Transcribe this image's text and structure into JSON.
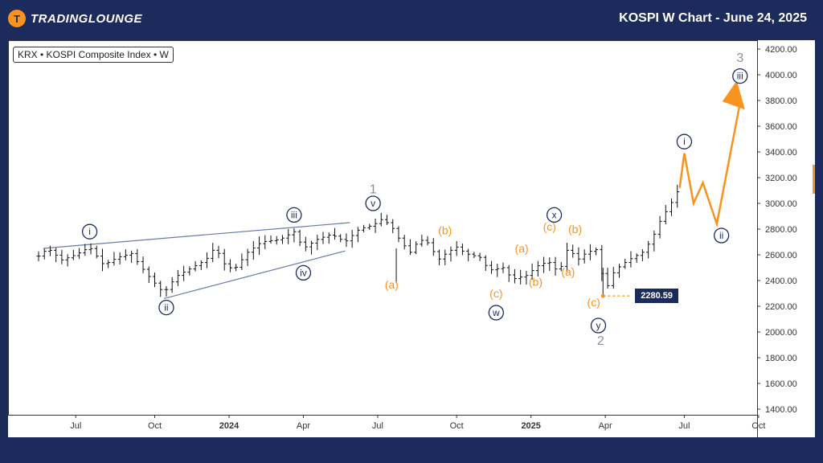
{
  "header": {
    "logo_text": "TRADINGLOUNGE",
    "logo_badge": "T",
    "title": "KOSPI W Chart - June 24, 2025"
  },
  "ticker_label": "KRX • KOSPI Composite Index • W",
  "price_marker": {
    "value": "2280.59"
  },
  "colors": {
    "background": "#1b2b5c",
    "orange": "#f7931e",
    "navy": "#1b2b5c",
    "grey": "#8a8f99",
    "trend": "#6a7ba8"
  },
  "chart_data": {
    "type": "ohlc-weekly",
    "title": "KOSPI W Chart - June 24, 2025",
    "ylim": [
      1400,
      4200
    ],
    "y_ticks": [
      "4200.00",
      "4000.00",
      "3800.00",
      "3600.00",
      "3400.00",
      "3200.00",
      "3000.00",
      "2800.00",
      "2600.00",
      "2400.00",
      "2200.00",
      "2000.00",
      "1800.00",
      "1600.00",
      "1400.00"
    ],
    "x_ticks": [
      {
        "label": "Jul",
        "bold": false,
        "t": 0.08
      },
      {
        "label": "Oct",
        "bold": false,
        "t": 0.25
      },
      {
        "label": "2024",
        "bold": true,
        "t": 0.41
      },
      {
        "label": "Apr",
        "bold": false,
        "t": 0.57
      },
      {
        "label": "Jul",
        "bold": false,
        "t": 0.73
      },
      {
        "label": "Oct",
        "bold": false,
        "t": 0.9
      },
      {
        "label": "2025",
        "bold": true,
        "t": 1.06
      },
      {
        "label": "Apr",
        "bold": false,
        "t": 1.22
      },
      {
        "label": "Jul",
        "bold": false,
        "t": 1.39
      },
      {
        "label": "Oct",
        "bold": false,
        "t": 1.55
      }
    ],
    "price_path": [
      [
        0.0,
        2590
      ],
      [
        0.02,
        2650
      ],
      [
        0.05,
        2560
      ],
      [
        0.08,
        2600
      ],
      [
        0.11,
        2660
      ],
      [
        0.14,
        2520
      ],
      [
        0.17,
        2580
      ],
      [
        0.2,
        2610
      ],
      [
        0.22,
        2510
      ],
      [
        0.24,
        2420
      ],
      [
        0.27,
        2300
      ],
      [
        0.28,
        2360
      ],
      [
        0.3,
        2440
      ],
      [
        0.33,
        2500
      ],
      [
        0.36,
        2560
      ],
      [
        0.38,
        2660
      ],
      [
        0.4,
        2530
      ],
      [
        0.42,
        2480
      ],
      [
        0.45,
        2620
      ],
      [
        0.48,
        2700
      ],
      [
        0.52,
        2720
      ],
      [
        0.55,
        2780
      ],
      [
        0.57,
        2650
      ],
      [
        0.6,
        2720
      ],
      [
        0.63,
        2760
      ],
      [
        0.66,
        2700
      ],
      [
        0.69,
        2800
      ],
      [
        0.72,
        2830
      ],
      [
        0.74,
        2880
      ],
      [
        0.76,
        2820
      ],
      [
        0.78,
        2700
      ],
      [
        0.8,
        2620
      ],
      [
        0.82,
        2720
      ],
      [
        0.84,
        2690
      ],
      [
        0.86,
        2560
      ],
      [
        0.88,
        2620
      ],
      [
        0.9,
        2660
      ],
      [
        0.92,
        2610
      ],
      [
        0.95,
        2580
      ],
      [
        0.97,
        2480
      ],
      [
        1.0,
        2500
      ],
      [
        1.02,
        2410
      ],
      [
        1.05,
        2440
      ],
      [
        1.08,
        2530
      ],
      [
        1.1,
        2540
      ],
      [
        1.12,
        2460
      ],
      [
        1.14,
        2660
      ],
      [
        1.16,
        2560
      ],
      [
        1.18,
        2620
      ],
      [
        1.2,
        2640
      ],
      [
        1.21,
        2500
      ],
      [
        1.22,
        2320
      ],
      [
        1.24,
        2480
      ],
      [
        1.27,
        2560
      ],
      [
        1.3,
        2620
      ],
      [
        1.32,
        2720
      ],
      [
        1.34,
        2880
      ],
      [
        1.36,
        2990
      ],
      [
        1.375,
        3090
      ]
    ],
    "projection": [
      [
        1.38,
        3120
      ],
      [
        1.39,
        3390
      ],
      [
        1.41,
        3000
      ],
      [
        1.43,
        3160
      ],
      [
        1.46,
        2840
      ],
      [
        1.51,
        3780
      ]
    ],
    "trend_lines": [
      {
        "from": [
          0.01,
          2650
        ],
        "to": [
          0.67,
          2850
        ]
      },
      {
        "from": [
          0.27,
          2260
        ],
        "to": [
          0.66,
          2630
        ]
      }
    ],
    "wave_labels": [
      {
        "text": "i",
        "style": "circle",
        "color": "navy",
        "t": 0.11,
        "p": 2780
      },
      {
        "text": "ii",
        "style": "circle",
        "color": "navy",
        "t": 0.275,
        "p": 2190
      },
      {
        "text": "iii",
        "style": "circle",
        "color": "navy",
        "t": 0.55,
        "p": 2910
      },
      {
        "text": "iv",
        "style": "circle",
        "color": "navy",
        "t": 0.57,
        "p": 2460
      },
      {
        "text": "v",
        "style": "circle",
        "color": "navy",
        "t": 0.72,
        "p": 3000
      },
      {
        "text": "1",
        "style": "plain",
        "color": "grey",
        "t": 0.72,
        "p": 3110
      },
      {
        "text": "(a)",
        "style": "plain",
        "color": "orange",
        "t": 0.76,
        "p": 2370
      },
      {
        "text": "(b)",
        "style": "plain",
        "color": "orange",
        "t": 0.875,
        "p": 2790
      },
      {
        "text": "(c)",
        "style": "plain",
        "color": "orange",
        "t": 0.985,
        "p": 2300
      },
      {
        "text": "w",
        "style": "circle",
        "color": "navy",
        "t": 0.985,
        "p": 2150
      },
      {
        "text": "(a)",
        "style": "plain",
        "color": "orange",
        "t": 1.04,
        "p": 2650
      },
      {
        "text": "(b)",
        "style": "plain",
        "color": "orange",
        "t": 1.07,
        "p": 2390
      },
      {
        "text": "(c)",
        "style": "plain",
        "color": "orange",
        "t": 1.1,
        "p": 2820
      },
      {
        "text": "x",
        "style": "circle",
        "color": "navy",
        "t": 1.11,
        "p": 2910
      },
      {
        "text": "(b)",
        "style": "plain",
        "color": "orange",
        "t": 1.155,
        "p": 2800
      },
      {
        "text": "(a)",
        "style": "plain",
        "color": "orange",
        "t": 1.14,
        "p": 2470
      },
      {
        "text": "(c)",
        "style": "plain",
        "color": "orange",
        "t": 1.195,
        "p": 2230
      },
      {
        "text": "y",
        "style": "circle",
        "color": "navy",
        "t": 1.205,
        "p": 2050
      },
      {
        "text": "2",
        "style": "plain",
        "color": "grey",
        "t": 1.21,
        "p": 1930
      },
      {
        "text": "i",
        "style": "circle",
        "color": "navy",
        "t": 1.39,
        "p": 3480
      },
      {
        "text": "ii",
        "style": "circle",
        "color": "navy",
        "t": 1.47,
        "p": 2750
      },
      {
        "text": "iii",
        "style": "circle",
        "color": "navy",
        "t": 1.51,
        "p": 3990
      },
      {
        "text": "3",
        "style": "plain",
        "color": "grey",
        "t": 1.51,
        "p": 4130
      }
    ]
  }
}
